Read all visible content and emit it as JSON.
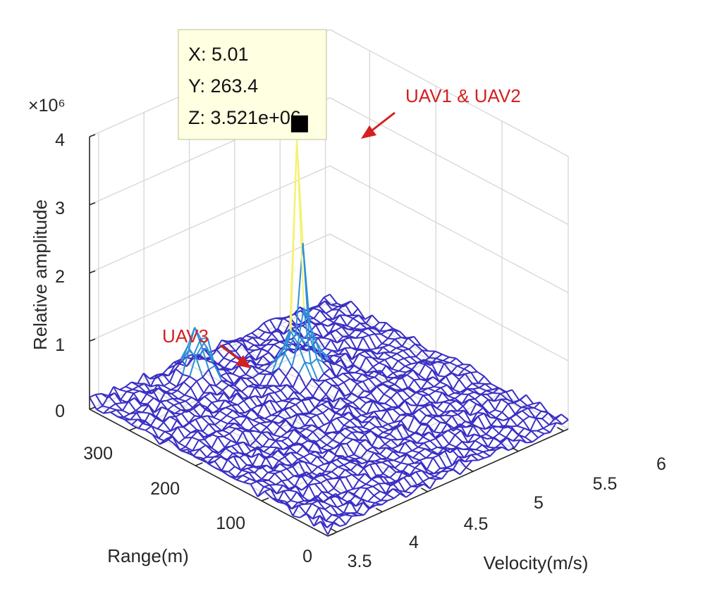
{
  "chart_data": {
    "type": "surface",
    "x": {
      "label": "Velocity(m/s)",
      "lim": [
        3.4,
        6.05
      ],
      "ticks": [
        3.5,
        4,
        4.5,
        5,
        5.5,
        6
      ],
      "tick_labels": [
        "3.5",
        "4",
        "4.5",
        "5",
        "5.5",
        "6"
      ]
    },
    "y": {
      "label": "Range(m)",
      "lim": [
        0,
        360
      ],
      "ticks": [
        0,
        100,
        200,
        300
      ],
      "tick_labels": [
        "0",
        "100",
        "200",
        "300"
      ]
    },
    "z": {
      "label": "Relative amplitude",
      "lim": [
        0,
        4000000
      ],
      "ticks": [
        0,
        1000000,
        2000000,
        3000000,
        4000000
      ],
      "tick_labels": [
        "0",
        "1",
        "2",
        "3",
        "4"
      ],
      "exponent_label": "×10⁶"
    },
    "grid": true,
    "peaks": [
      {
        "name": "UAV1 & UAV2",
        "velocity": 5.01,
        "range": 263.4,
        "amplitude": 3521000
      },
      {
        "name": "UAV3",
        "velocity": 4.35,
        "range": 325,
        "amplitude": 700000
      }
    ],
    "noise_floor": 100000,
    "datatip": {
      "x": "X: 5.01",
      "y": "Y: 263.4",
      "z": "Z: 3.521e+06",
      "velocity": 5.01,
      "range": 263.4,
      "amplitude": 3521000
    },
    "annotations": [
      {
        "text": "UAV1 & UAV2",
        "target": "peak-1"
      },
      {
        "text": "UAV3",
        "target": "peak-2"
      }
    ]
  },
  "colors": {
    "surface_low": "#3a2fc4",
    "surface_mid": "#2f8fd8",
    "surface_high": "#f4f272",
    "annotation": "#d42020",
    "datatip_bg": "#ffffe2"
  }
}
